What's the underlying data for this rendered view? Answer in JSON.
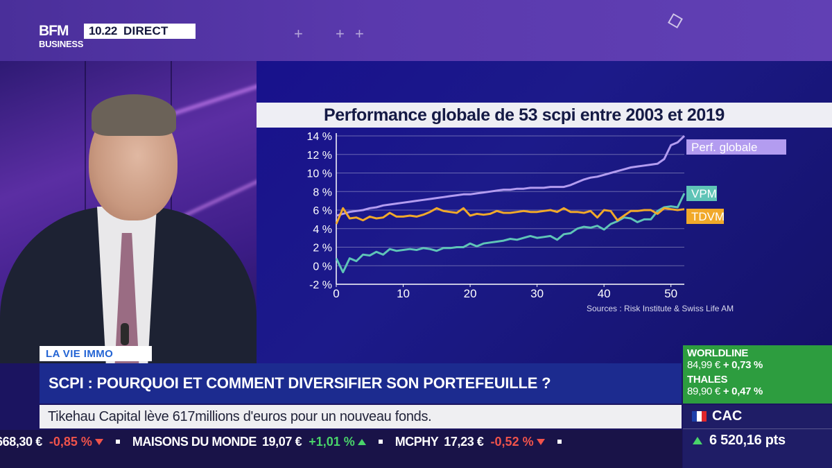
{
  "header": {
    "brand_top": "BFM",
    "brand_bottom": "BUSINESS",
    "time": "10.22",
    "live_label": "DIRECT",
    "decor_plus": "+ ++"
  },
  "chart": {
    "title": "Performance globale de 53 scpi entre 2003 et 2019",
    "source": "Sources : Risk Institute & Swiss Life AM"
  },
  "chart_data": {
    "type": "line",
    "title": "Performance globale de 53 scpi entre 2003 et 2019",
    "xlabel": "",
    "ylabel": "",
    "xlim": [
      0,
      52
    ],
    "ylim": [
      -2,
      14
    ],
    "x_ticks": [
      "0",
      "10",
      "20",
      "30",
      "40",
      "50"
    ],
    "y_ticks": [
      "-2 %",
      "0 %",
      "2 %",
      "4 %",
      "6 %",
      "8 %",
      "10 %",
      "12 %",
      "14 %"
    ],
    "x_tick_values": [
      0,
      10,
      20,
      30,
      40,
      50
    ],
    "y_tick_values": [
      -2,
      0,
      2,
      4,
      6,
      8,
      10,
      12,
      14
    ],
    "grid": true,
    "legend": "right, inline labels",
    "series": [
      {
        "name": "Perf. globale",
        "color": "#b39cf0",
        "label_bg": "#b39cf0",
        "label_color": "#ffffff",
        "x": [
          0,
          1,
          2,
          3,
          4,
          5,
          6,
          7,
          8,
          9,
          10,
          11,
          12,
          13,
          14,
          15,
          16,
          17,
          18,
          19,
          20,
          21,
          22,
          23,
          24,
          25,
          26,
          27,
          28,
          29,
          30,
          31,
          32,
          33,
          34,
          35,
          36,
          37,
          38,
          39,
          40,
          41,
          42,
          43,
          44,
          45,
          46,
          47,
          48,
          49,
          50,
          51,
          52
        ],
        "y": [
          5.4,
          5.6,
          5.8,
          5.9,
          6.0,
          6.2,
          6.3,
          6.5,
          6.6,
          6.7,
          6.8,
          6.9,
          7.0,
          7.1,
          7.2,
          7.3,
          7.4,
          7.5,
          7.6,
          7.7,
          7.7,
          7.8,
          7.9,
          8.0,
          8.1,
          8.2,
          8.2,
          8.3,
          8.3,
          8.4,
          8.4,
          8.4,
          8.5,
          8.5,
          8.5,
          8.7,
          9.0,
          9.3,
          9.5,
          9.6,
          9.8,
          10.0,
          10.2,
          10.4,
          10.6,
          10.7,
          10.8,
          10.9,
          11.0,
          11.5,
          13.0,
          13.3,
          14.0
        ]
      },
      {
        "name": "VPM",
        "color": "#5fc4b7",
        "label_bg": "#5fc4b7",
        "label_color": "#ffffff",
        "x": [
          0,
          1,
          2,
          3,
          4,
          5,
          6,
          7,
          8,
          9,
          10,
          11,
          12,
          13,
          14,
          15,
          16,
          17,
          18,
          19,
          20,
          21,
          22,
          23,
          24,
          25,
          26,
          27,
          28,
          29,
          30,
          31,
          32,
          33,
          34,
          35,
          36,
          37,
          38,
          39,
          40,
          41,
          42,
          43,
          44,
          45,
          46,
          47,
          48,
          49,
          50,
          51,
          52
        ],
        "y": [
          0.8,
          -0.7,
          0.8,
          0.5,
          1.2,
          1.1,
          1.5,
          1.2,
          1.8,
          1.6,
          1.7,
          1.8,
          1.7,
          1.9,
          1.8,
          1.6,
          1.9,
          1.9,
          2.0,
          2.0,
          2.4,
          2.1,
          2.4,
          2.5,
          2.6,
          2.7,
          2.9,
          2.8,
          3.0,
          3.2,
          3.0,
          3.1,
          3.2,
          2.8,
          3.4,
          3.5,
          4.0,
          4.2,
          4.1,
          4.3,
          3.9,
          4.5,
          4.8,
          5.2,
          5.1,
          4.7,
          5.0,
          5.0,
          5.9,
          6.3,
          6.4,
          6.3,
          7.8
        ]
      },
      {
        "name": "TDVM",
        "color": "#f1a92a",
        "label_bg": "#f1a92a",
        "label_color": "#ffffff",
        "x": [
          0,
          1,
          2,
          3,
          4,
          5,
          6,
          7,
          8,
          9,
          10,
          11,
          12,
          13,
          14,
          15,
          16,
          17,
          18,
          19,
          20,
          21,
          22,
          23,
          24,
          25,
          26,
          27,
          28,
          29,
          30,
          31,
          32,
          33,
          34,
          35,
          36,
          37,
          38,
          39,
          40,
          41,
          42,
          43,
          44,
          45,
          46,
          47,
          48,
          49,
          50,
          51,
          52
        ],
        "y": [
          4.5,
          6.2,
          5.1,
          5.2,
          4.9,
          5.3,
          5.1,
          5.2,
          5.7,
          5.3,
          5.3,
          5.4,
          5.3,
          5.5,
          5.8,
          6.2,
          5.9,
          5.8,
          5.7,
          6.2,
          5.4,
          5.6,
          5.5,
          5.6,
          5.9,
          5.7,
          5.7,
          5.8,
          5.9,
          5.8,
          5.8,
          5.9,
          6.0,
          5.8,
          6.2,
          5.8,
          5.8,
          5.7,
          5.9,
          5.2,
          6.0,
          5.9,
          4.9,
          5.4,
          5.9,
          5.9,
          6.0,
          6.0,
          5.6,
          6.2,
          6.1,
          6.0,
          6.1
        ]
      }
    ]
  },
  "lower_third": {
    "category": "LA VIE IMMO",
    "headline": "SCPI : POURQUOI ET COMMENT DIVERSIFIER SON PORTEFEUILLE ?",
    "subtitle": "Tikehau Capital lève 617millions d'euros pour un nouveau fonds."
  },
  "ticker": {
    "items": [
      {
        "name": "",
        "value": "668,30 €",
        "change": "-0,85 %",
        "dir": "down"
      },
      {
        "name": "MAISONS DU MONDE",
        "value": "19,07 €",
        "change": "+1,01 %",
        "dir": "up"
      },
      {
        "name": "MCPHY",
        "value": "17,23 €",
        "change": "-0,52 %",
        "dir": "down"
      }
    ]
  },
  "market": {
    "stocks": [
      {
        "name": "WORLDLINE",
        "price": "84,99 €",
        "change": "+ 0,73 %"
      },
      {
        "name": "THALES",
        "price": "89,90 €",
        "change": "+ 0,47 %"
      }
    ],
    "index": {
      "name": "CAC",
      "value": "6 520,16 pts",
      "dir": "up"
    }
  },
  "colors": {
    "topbar": "#5a39ad",
    "headline_bar": "#1c2b8f",
    "stocks_green": "#2d9d3f",
    "category_text": "#2364d4"
  }
}
